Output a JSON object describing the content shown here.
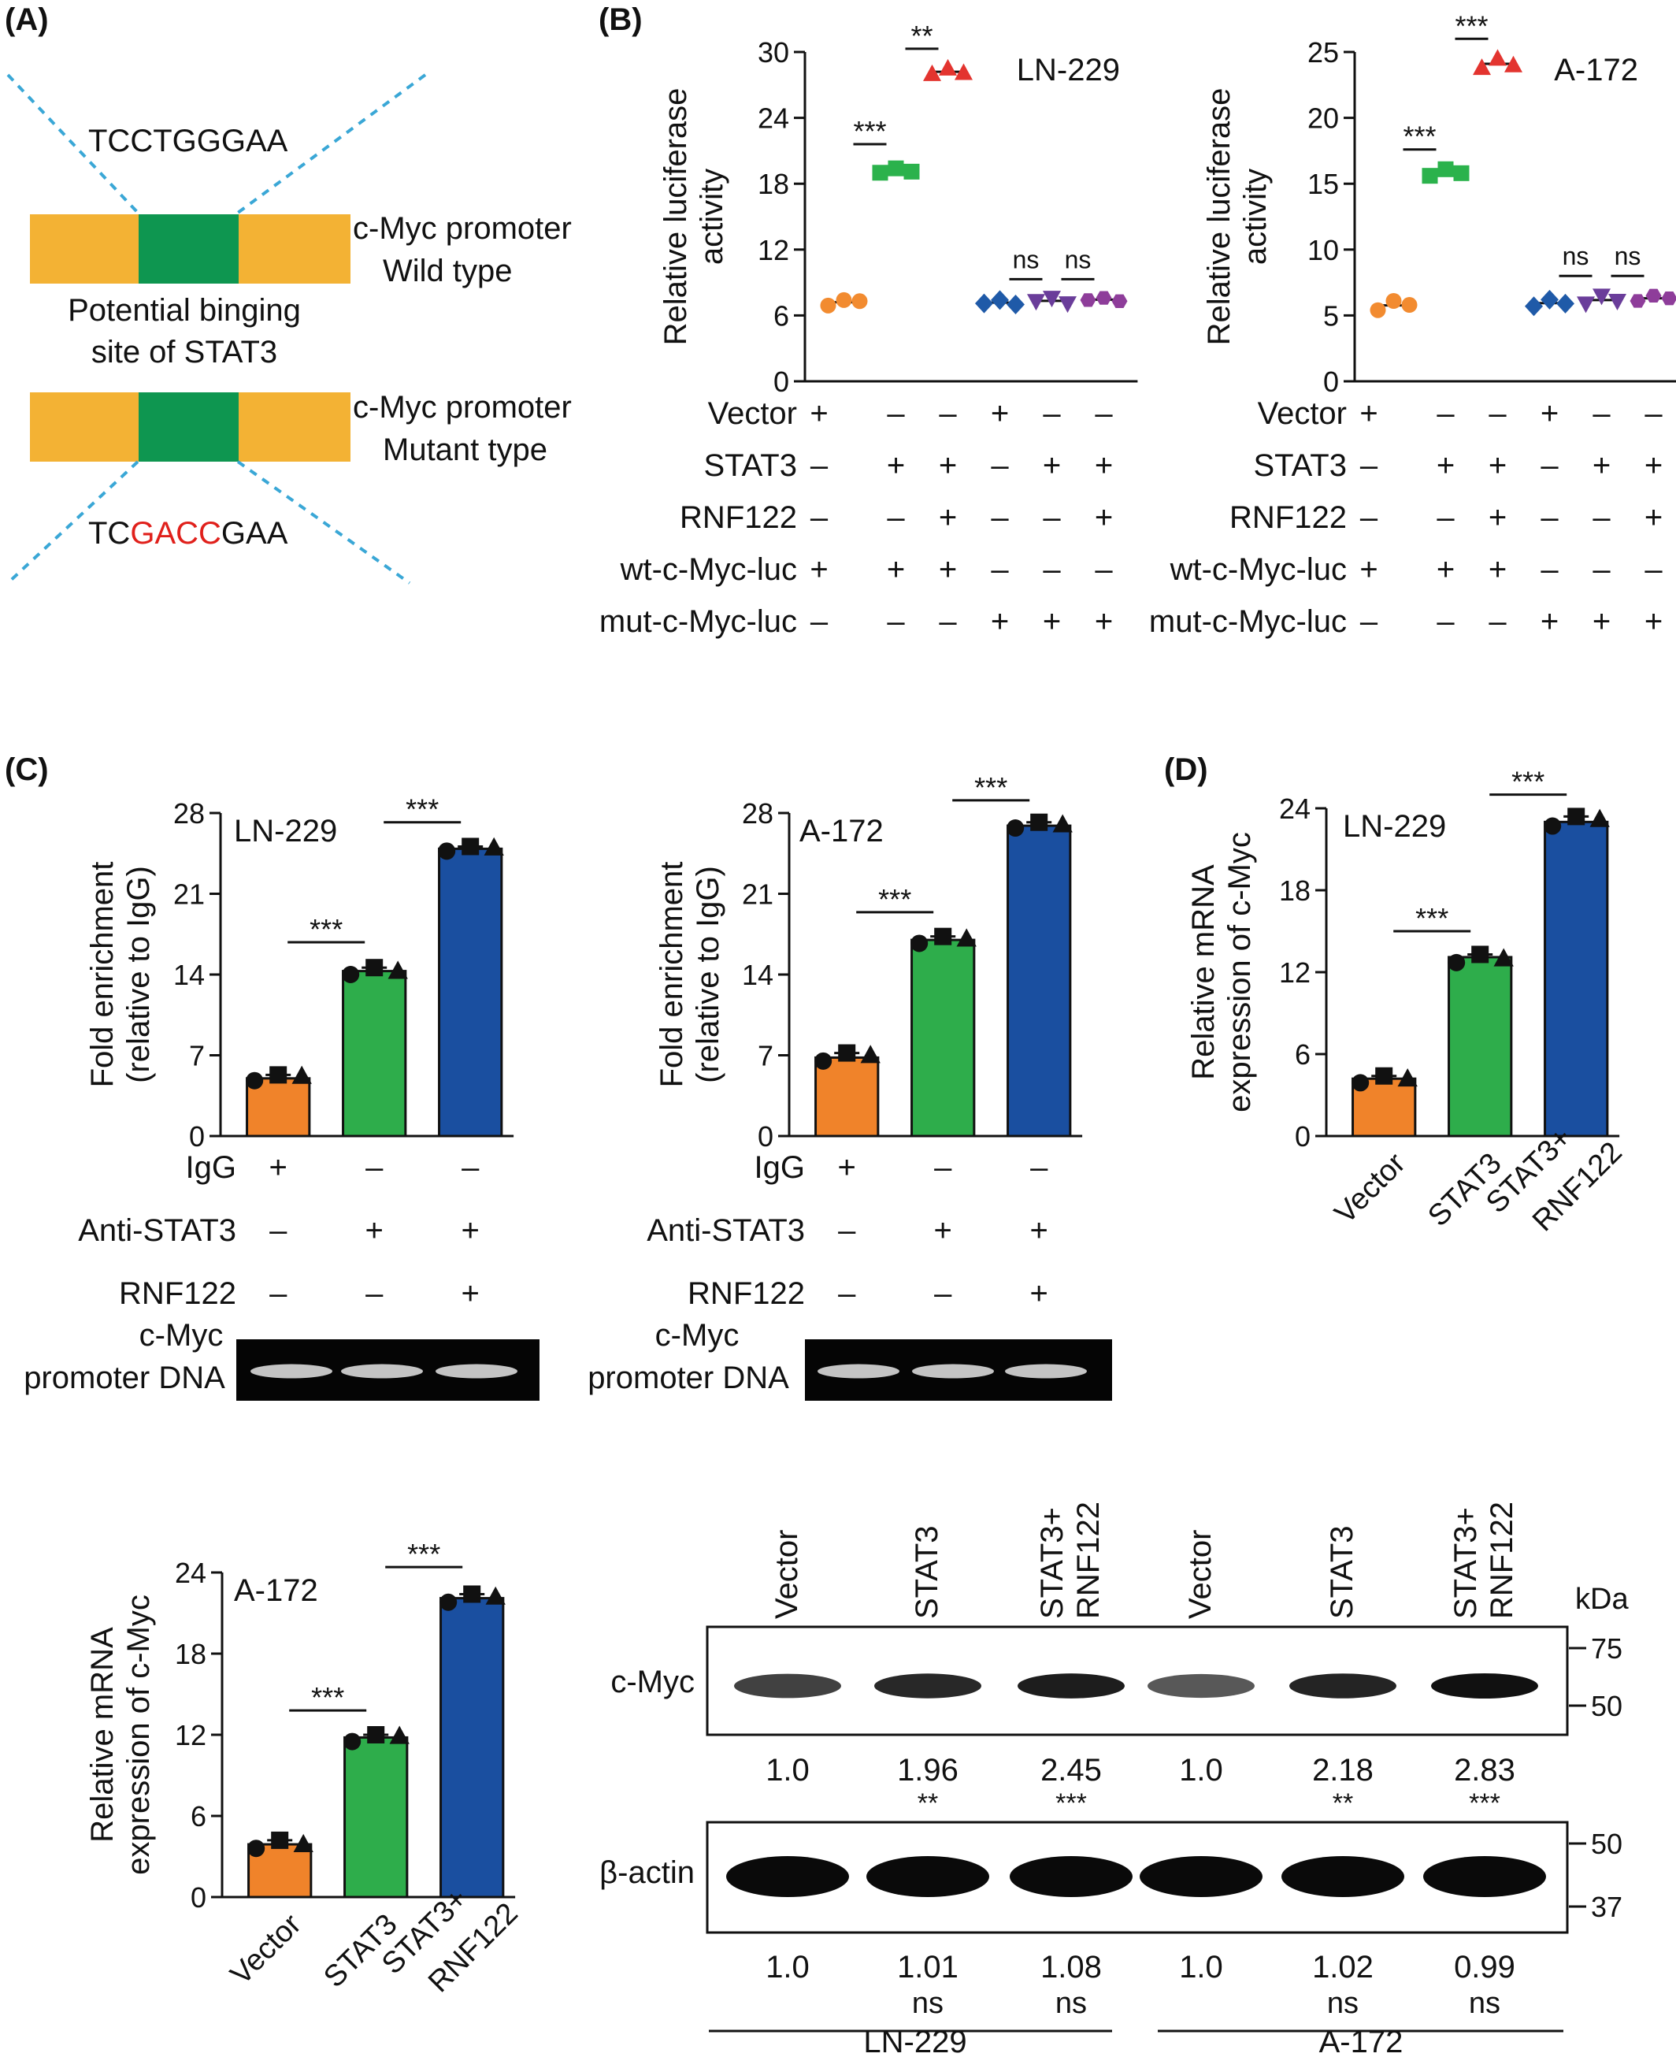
{
  "panels": {
    "A": {
      "label": "(A)",
      "wt_sequence": "TCCTGGGAA",
      "wt_label_1": "c-Myc promoter",
      "wt_label_2": "Wild type",
      "site_label_1": "Potential binging",
      "site_label_2": "site of STAT3",
      "mut_label_1": "c-Myc promoter",
      "mut_label_2": "Mutant type",
      "mut_seq_prefix": "TC",
      "mut_seq_mutated": "GACC",
      "mut_seq_suffix": "GAA",
      "colors": {
        "flank": "#f3b234",
        "site": "#0e9650",
        "dash": "#3aa7d6",
        "mutation": "#e0201b"
      }
    },
    "B": {
      "label": "(B)",
      "condition_labels": [
        "Vector",
        "STAT3",
        "RNF122",
        "wt-c-Myc-luc",
        "mut-c-Myc-luc"
      ],
      "condition_table": [
        [
          "+",
          "–",
          "–",
          "+",
          "–",
          "–"
        ],
        [
          "–",
          "+",
          "+",
          "–",
          "+",
          "+"
        ],
        [
          "–",
          "–",
          "+",
          "–",
          "–",
          "+"
        ],
        [
          "+",
          "+",
          "+",
          "–",
          "–",
          "–"
        ],
        [
          "–",
          "–",
          "–",
          "+",
          "+",
          "+"
        ]
      ]
    },
    "C": {
      "label": "(C)",
      "condition_labels": [
        "IgG",
        "Anti-STAT3",
        "RNF122"
      ],
      "condition_table": [
        [
          "+",
          "–",
          "–"
        ],
        [
          "–",
          "+",
          "+"
        ],
        [
          "–",
          "–",
          "+"
        ]
      ],
      "gel_label_1": "c-Myc",
      "gel_label_2": "promoter DNA"
    },
    "D": {
      "label": "(D)",
      "western": {
        "lanes": [
          "Vector",
          "STAT3",
          "STAT3+\nRNF122",
          "Vector",
          "STAT3",
          "STAT3+\nRNF122"
        ],
        "kda_label": "kDa",
        "cmyc_label": "c-Myc",
        "cmyc_markers": [
          "75",
          "50"
        ],
        "cmyc_ratios": [
          "1.0",
          "1.96",
          "2.45",
          "1.0",
          "2.18",
          "2.83"
        ],
        "cmyc_sig": [
          "",
          "**",
          "***",
          "",
          "**",
          "***"
        ],
        "actin_label": "β-actin",
        "actin_markers": [
          "50",
          "37"
        ],
        "actin_ratios": [
          "1.0",
          "1.01",
          "1.08",
          "1.0",
          "1.02",
          "0.99"
        ],
        "actin_sig": [
          "",
          "ns",
          "ns",
          "",
          "ns",
          "ns"
        ],
        "cell_lines": [
          "LN-229",
          "A-172"
        ]
      }
    }
  },
  "chart_data": [
    {
      "id": "B-LN229",
      "type": "scatter",
      "title": "LN-229",
      "ylabel": "Relative luciferase\nactivity",
      "ylim": [
        0,
        30
      ],
      "yticks": [
        "0",
        "6",
        "12",
        "18",
        "24",
        "30"
      ],
      "groups": [
        {
          "points": [
            6.9,
            7.4,
            7.3
          ],
          "color": "#f28b30",
          "marker": "circle"
        },
        {
          "points": [
            19.0,
            19.4,
            19.1
          ],
          "color": "#2bb24c",
          "marker": "square"
        },
        {
          "points": [
            28.0,
            28.5,
            28.1
          ],
          "color": "#e3342f",
          "marker": "triangle"
        },
        {
          "points": [
            7.1,
            7.4,
            7.0
          ],
          "color": "#1f5aa8",
          "marker": "diamond"
        },
        {
          "points": [
            7.3,
            7.6,
            7.1
          ],
          "color": "#6a3d9a",
          "marker": "triangle-down"
        },
        {
          "points": [
            7.4,
            7.6,
            7.3
          ],
          "color": "#8e3d9a",
          "marker": "hexagon"
        }
      ],
      "significance": [
        {
          "from": 0,
          "to": 1,
          "y": 21.6,
          "label": "***"
        },
        {
          "from": 1,
          "to": 2,
          "y": 30.3,
          "label": "**"
        },
        {
          "from": 3,
          "to": 4,
          "y": 9.3,
          "label": "ns"
        },
        {
          "from": 4,
          "to": 5,
          "y": 9.3,
          "label": "ns"
        }
      ]
    },
    {
      "id": "B-A172",
      "type": "scatter",
      "title": "A-172",
      "ylabel": "Relative luciferase\nactivity",
      "ylim": [
        0,
        25
      ],
      "yticks": [
        "0",
        "5",
        "10",
        "15",
        "20",
        "25"
      ],
      "groups": [
        {
          "points": [
            5.4,
            6.1,
            5.8
          ],
          "color": "#f28b30",
          "marker": "circle"
        },
        {
          "points": [
            15.6,
            16.1,
            15.8
          ],
          "color": "#2bb24c",
          "marker": "square"
        },
        {
          "points": [
            23.8,
            24.5,
            24.0
          ],
          "color": "#e3342f",
          "marker": "triangle"
        },
        {
          "points": [
            5.7,
            6.2,
            5.9
          ],
          "color": "#1f5aa8",
          "marker": "diamond"
        },
        {
          "points": [
            5.9,
            6.5,
            6.1
          ],
          "color": "#6a3d9a",
          "marker": "triangle-down"
        },
        {
          "points": [
            6.1,
            6.5,
            6.3
          ],
          "color": "#8e3d9a",
          "marker": "hexagon"
        }
      ],
      "significance": [
        {
          "from": 0,
          "to": 1,
          "y": 17.6,
          "label": "***"
        },
        {
          "from": 1,
          "to": 2,
          "y": 26.0,
          "label": "***"
        },
        {
          "from": 3,
          "to": 4,
          "y": 8.0,
          "label": "ns"
        },
        {
          "from": 4,
          "to": 5,
          "y": 8.0,
          "label": "ns"
        }
      ]
    },
    {
      "id": "C-LN229",
      "type": "bar",
      "title": "LN-229",
      "ylabel": "Fold enrichment\n(relative to IgG)",
      "ylim": [
        0,
        28
      ],
      "yticks": [
        "0",
        "7",
        "14",
        "21",
        "28"
      ],
      "values": [
        5.0,
        14.3,
        24.9
      ],
      "points": [
        [
          4.8,
          5.3,
          5.2
        ],
        [
          14.0,
          14.6,
          14.3
        ],
        [
          24.7,
          25.1,
          25.0
        ]
      ],
      "colors": [
        "#f0832a",
        "#2ead4b",
        "#1a4fa0"
      ],
      "significance": [
        {
          "from": 0,
          "to": 1,
          "y": 16.8,
          "label": "***"
        },
        {
          "from": 1,
          "to": 2,
          "y": 27.2,
          "label": "***"
        }
      ]
    },
    {
      "id": "C-A172",
      "type": "bar",
      "title": "A-172",
      "ylabel": "Fold enrichment\n(relative to IgG)",
      "ylim": [
        0,
        28
      ],
      "yticks": [
        "0",
        "7",
        "14",
        "21",
        "28"
      ],
      "values": [
        6.8,
        17.0,
        26.9
      ],
      "points": [
        [
          6.5,
          7.2,
          7.0
        ],
        [
          16.7,
          17.3,
          17.1
        ],
        [
          26.7,
          27.2,
          27.0
        ]
      ],
      "colors": [
        "#f0832a",
        "#2ead4b",
        "#1a4fa0"
      ],
      "significance": [
        {
          "from": 0,
          "to": 1,
          "y": 19.4,
          "label": "***"
        },
        {
          "from": 1,
          "to": 2,
          "y": 29.1,
          "label": "***"
        }
      ]
    },
    {
      "id": "D-LN229",
      "type": "bar",
      "title": "LN-229",
      "ylabel": "Relative mRNA\nexpression of c-Myc",
      "categories": [
        "Vector",
        "STAT3",
        "STAT3+\nRNF122"
      ],
      "ylim": [
        0,
        24
      ],
      "yticks": [
        "0",
        "6",
        "12",
        "18",
        "24"
      ],
      "values": [
        4.2,
        13.1,
        23.0
      ],
      "points": [
        [
          3.9,
          4.4,
          4.2
        ],
        [
          12.7,
          13.3,
          13.0
        ],
        [
          22.7,
          23.4,
          23.2
        ]
      ],
      "colors": [
        "#f0832a",
        "#2ead4b",
        "#1a4fa0"
      ],
      "significance": [
        {
          "from": 0,
          "to": 1,
          "y": 15.0,
          "label": "***"
        },
        {
          "from": 1,
          "to": 2,
          "y": 25.0,
          "label": "***"
        }
      ]
    },
    {
      "id": "D-A172",
      "type": "bar",
      "title": "A-172",
      "ylabel": "Relative mRNA\nexpression of c-Myc",
      "categories": [
        "Vector",
        "STAT3",
        "STAT3+\nRNF122"
      ],
      "ylim": [
        0,
        24
      ],
      "yticks": [
        "0",
        "6",
        "12",
        "18",
        "24"
      ],
      "values": [
        3.9,
        11.8,
        22.1
      ],
      "points": [
        [
          3.6,
          4.2,
          3.9
        ],
        [
          11.5,
          12.0,
          11.9
        ],
        [
          21.8,
          22.4,
          22.2
        ]
      ],
      "colors": [
        "#f0832a",
        "#2ead4b",
        "#1a4fa0"
      ],
      "significance": [
        {
          "from": 0,
          "to": 1,
          "y": 13.8,
          "label": "***"
        },
        {
          "from": 1,
          "to": 2,
          "y": 24.4,
          "label": "***"
        }
      ]
    }
  ]
}
